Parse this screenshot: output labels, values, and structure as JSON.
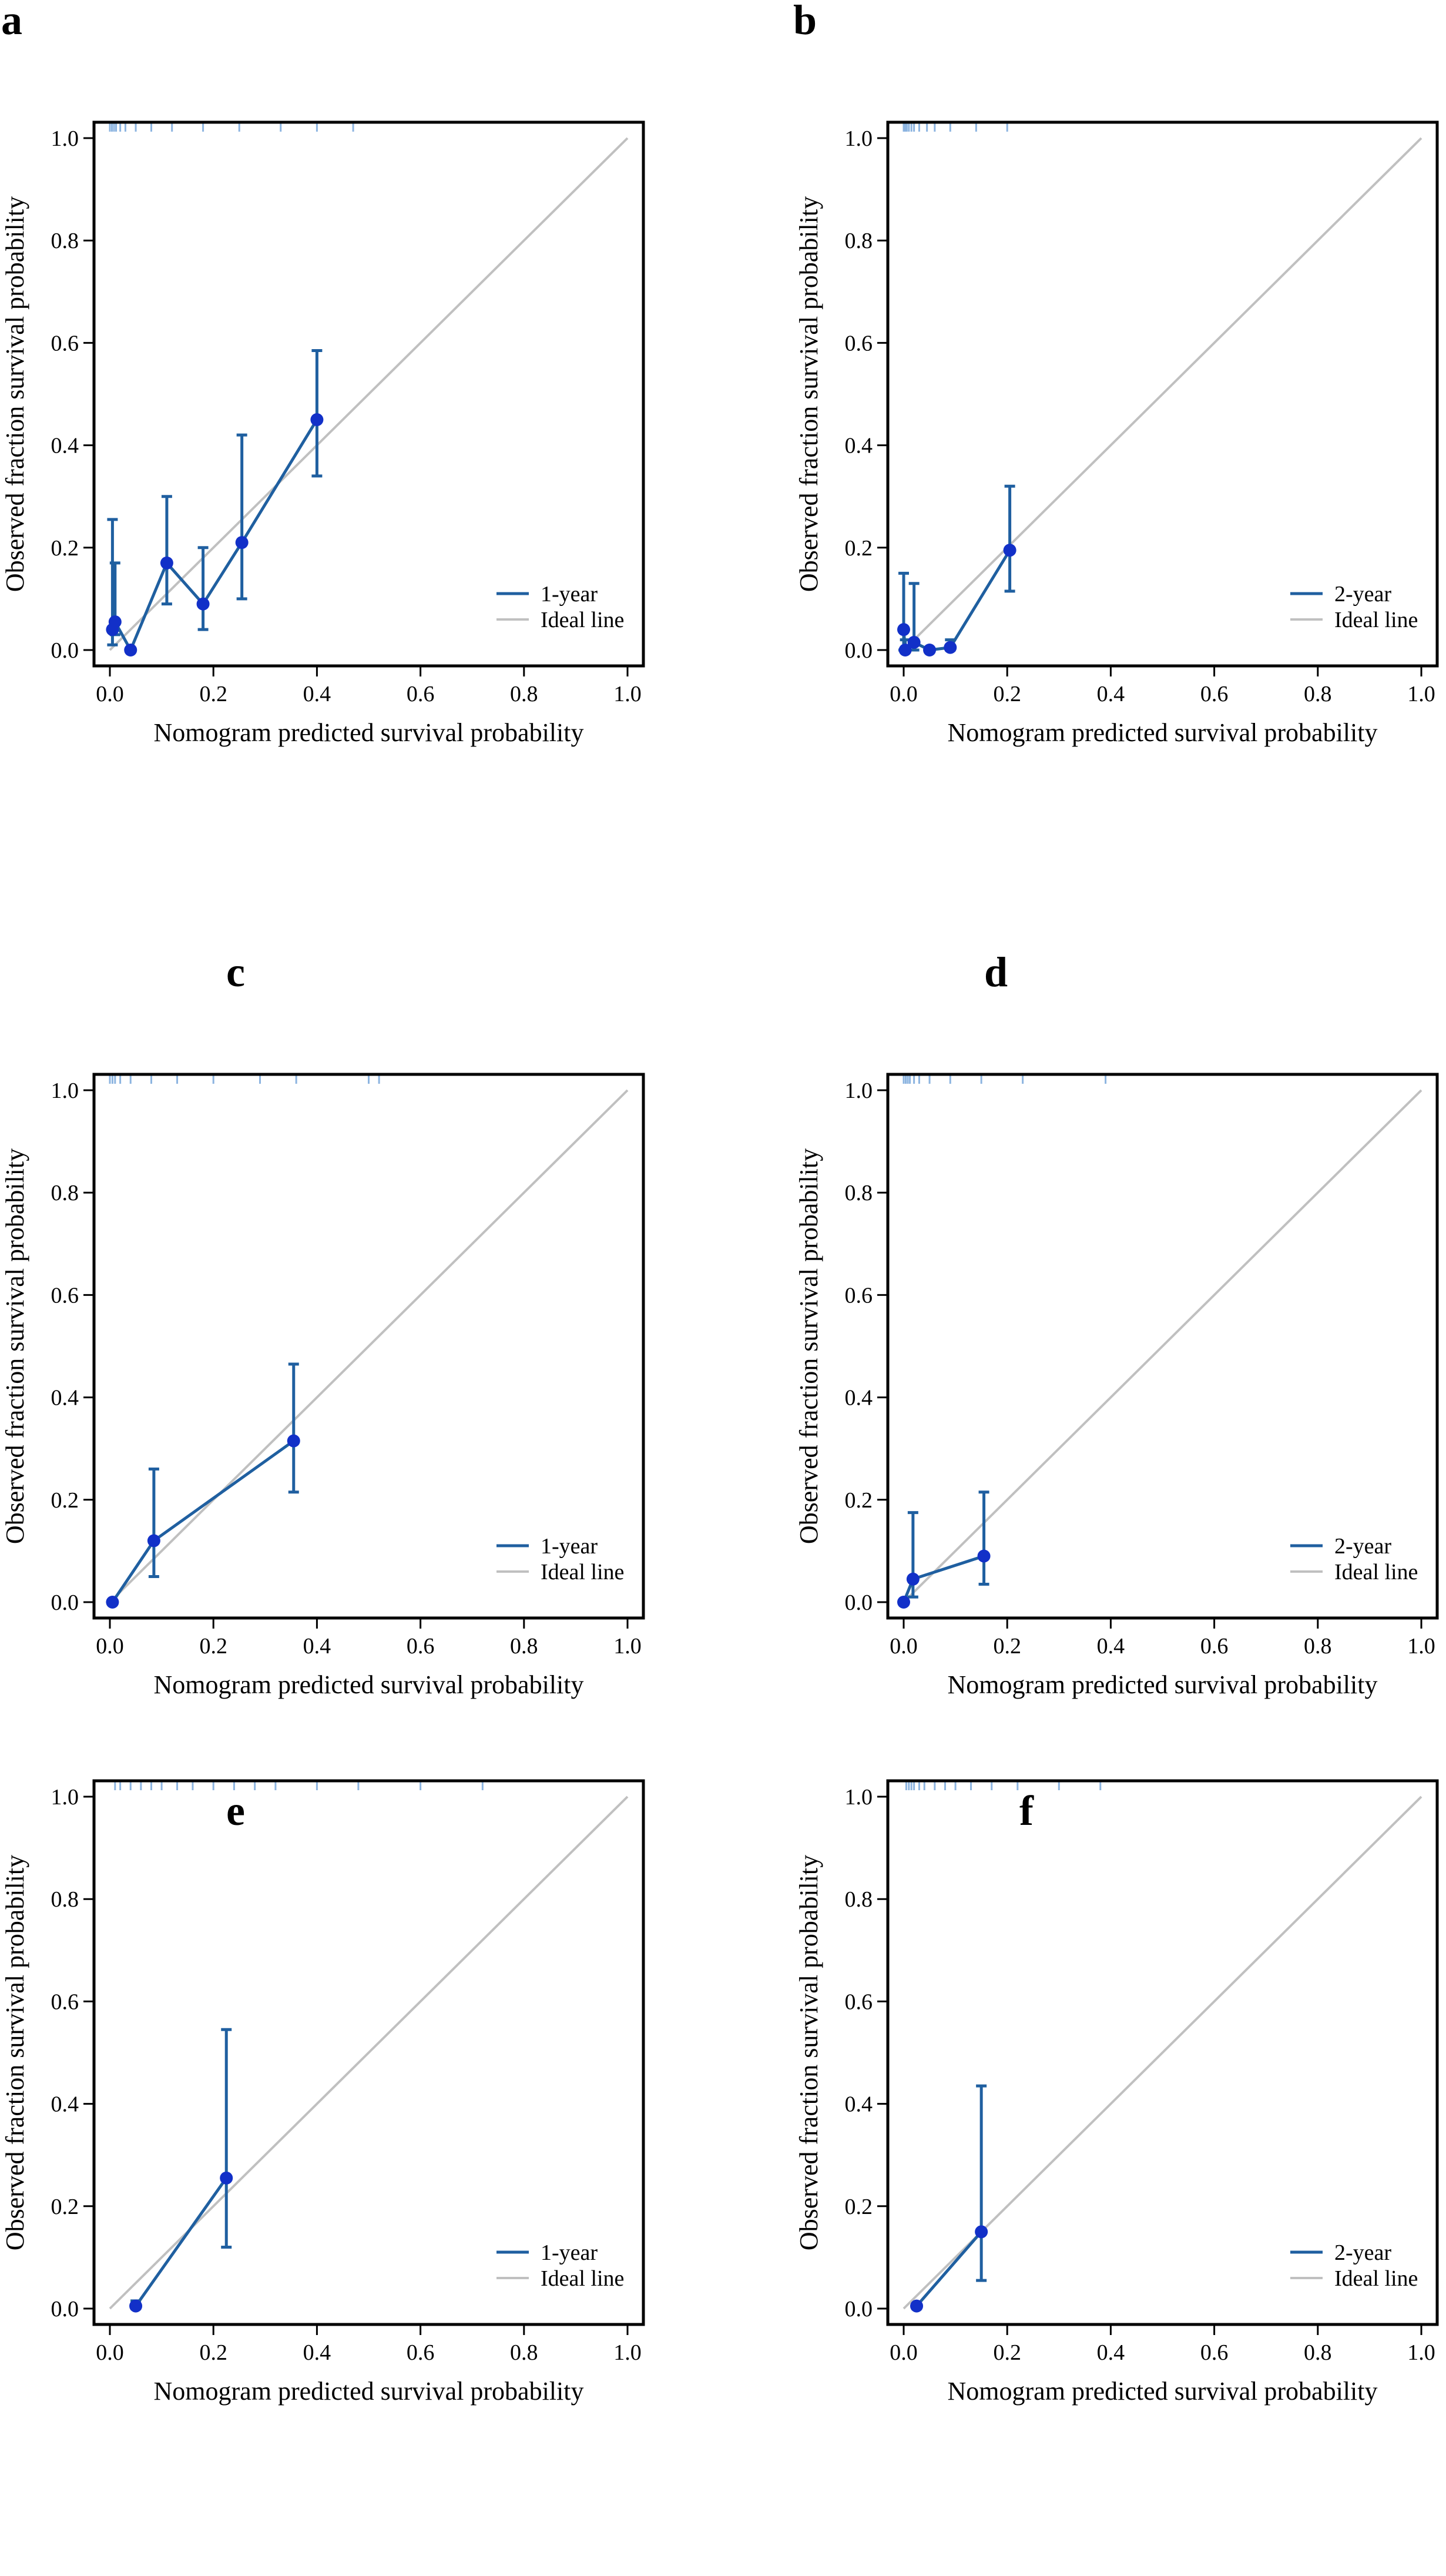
{
  "figure": {
    "panel_count": 6
  },
  "style": {
    "series_color": "#1f5fa0",
    "point_color": "#1230c8",
    "ideal_color": "#c0c0c0",
    "rug_color": "#8cb4e0",
    "frame_color": "#000000"
  },
  "chart_data": [
    {
      "panel": "a",
      "type": "line",
      "title": "",
      "xlabel": "Nomogram predicted survival probability",
      "ylabel": "Observed fraction survival probability",
      "xlim": [
        0,
        1
      ],
      "ylim": [
        0,
        1
      ],
      "xticks": [
        "0.0",
        "0.2",
        "0.4",
        "0.6",
        "0.8",
        "1.0"
      ],
      "yticks": [
        "0.0",
        "0.2",
        "0.4",
        "0.6",
        "0.8",
        "1.0"
      ],
      "legend": [
        "1-year",
        "Ideal line"
      ],
      "legend_position": "bottom-right",
      "series": [
        {
          "name": "1-year",
          "x": [
            0.005,
            0.01,
            0.04,
            0.11,
            0.18,
            0.255,
            0.4
          ],
          "y": [
            0.04,
            0.055,
            0.0,
            0.17,
            0.09,
            0.21,
            0.45
          ],
          "lower": [
            0.01,
            0.03,
            0.0,
            0.09,
            0.04,
            0.1,
            0.34
          ],
          "upper": [
            0.255,
            0.17,
            0.0,
            0.3,
            0.2,
            0.42,
            0.585
          ]
        }
      ],
      "rug": [
        0.0,
        0.004,
        0.008,
        0.012,
        0.02,
        0.03,
        0.05,
        0.08,
        0.12,
        0.18,
        0.25,
        0.33,
        0.4,
        0.47
      ]
    },
    {
      "panel": "b",
      "type": "line",
      "title": "",
      "xlabel": "Nomogram predicted survival probability",
      "ylabel": "Observed fraction survival probability",
      "xlim": [
        0,
        1
      ],
      "ylim": [
        0,
        1
      ],
      "xticks": [
        "0.0",
        "0.2",
        "0.4",
        "0.6",
        "0.8",
        "1.0"
      ],
      "yticks": [
        "0.0",
        "0.2",
        "0.4",
        "0.6",
        "0.8",
        "1.0"
      ],
      "legend": [
        "2-year",
        "Ideal line"
      ],
      "legend_position": "bottom-right",
      "series": [
        {
          "name": "2-year",
          "x": [
            0.0,
            0.003,
            0.02,
            0.05,
            0.09,
            0.205
          ],
          "y": [
            0.04,
            0.0,
            0.015,
            0.0,
            0.005,
            0.195
          ],
          "lower": [
            0.0,
            0.0,
            0.0,
            0.0,
            0.0,
            0.115
          ],
          "upper": [
            0.15,
            0.02,
            0.13,
            0.0,
            0.02,
            0.32
          ]
        }
      ],
      "rug": [
        0.0,
        0.003,
        0.006,
        0.01,
        0.015,
        0.02,
        0.03,
        0.045,
        0.06,
        0.09,
        0.14,
        0.2
      ]
    },
    {
      "panel": "c",
      "type": "line",
      "title": "",
      "xlabel": "Nomogram predicted survival probability",
      "ylabel": "Observed fraction survival probability",
      "xlim": [
        0,
        1
      ],
      "ylim": [
        0,
        1
      ],
      "xticks": [
        "0.0",
        "0.2",
        "0.4",
        "0.6",
        "0.8",
        "1.0"
      ],
      "yticks": [
        "0.0",
        "0.2",
        "0.4",
        "0.6",
        "0.8",
        "1.0"
      ],
      "legend": [
        "1-year",
        "Ideal line"
      ],
      "legend_position": "bottom-right",
      "series": [
        {
          "name": "1-year",
          "x": [
            0.005,
            0.085,
            0.355
          ],
          "y": [
            0.0,
            0.12,
            0.315
          ],
          "lower": [
            0.0,
            0.05,
            0.215
          ],
          "upper": [
            0.0,
            0.26,
            0.465
          ]
        }
      ],
      "rug": [
        0.0,
        0.005,
        0.01,
        0.02,
        0.04,
        0.08,
        0.13,
        0.2,
        0.29,
        0.36,
        0.5,
        0.52
      ]
    },
    {
      "panel": "d",
      "type": "line",
      "title": "",
      "xlabel": "Nomogram predicted survival probability",
      "ylabel": "Observed fraction survival probability",
      "xlim": [
        0,
        1
      ],
      "ylim": [
        0,
        1
      ],
      "xticks": [
        "0.0",
        "0.2",
        "0.4",
        "0.6",
        "0.8",
        "1.0"
      ],
      "yticks": [
        "0.0",
        "0.2",
        "0.4",
        "0.6",
        "0.8",
        "1.0"
      ],
      "legend": [
        "2-year",
        "Ideal line"
      ],
      "legend_position": "bottom-right",
      "series": [
        {
          "name": "2-year",
          "x": [
            0.0,
            0.018,
            0.155
          ],
          "y": [
            0.0,
            0.045,
            0.09
          ],
          "lower": [
            0.0,
            0.01,
            0.035
          ],
          "upper": [
            0.0,
            0.175,
            0.215
          ]
        }
      ],
      "rug": [
        0.0,
        0.004,
        0.008,
        0.012,
        0.02,
        0.03,
        0.05,
        0.09,
        0.15,
        0.23,
        0.39
      ]
    },
    {
      "panel": "e",
      "type": "line",
      "title": "",
      "xlabel": "Nomogram predicted survival probability",
      "ylabel": "Observed fraction survival probability",
      "xlim": [
        0,
        1
      ],
      "ylim": [
        0,
        1
      ],
      "xticks": [
        "0.0",
        "0.2",
        "0.4",
        "0.6",
        "0.8",
        "1.0"
      ],
      "yticks": [
        "0.0",
        "0.2",
        "0.4",
        "0.6",
        "0.8",
        "1.0"
      ],
      "legend": [
        "1-year",
        "Ideal line"
      ],
      "legend_position": "bottom-right",
      "series": [
        {
          "name": "1-year",
          "x": [
            0.05,
            0.225
          ],
          "y": [
            0.005,
            0.255
          ],
          "lower": [
            0.0,
            0.12
          ],
          "upper": [
            0.015,
            0.545
          ]
        }
      ],
      "rug": [
        0.01,
        0.02,
        0.04,
        0.06,
        0.08,
        0.1,
        0.13,
        0.16,
        0.2,
        0.24,
        0.28,
        0.32,
        0.4,
        0.48,
        0.6,
        0.72
      ]
    },
    {
      "panel": "f",
      "type": "line",
      "title": "",
      "xlabel": "Nomogram predicted survival probability",
      "ylabel": "Observed fraction survival probability",
      "xlim": [
        0,
        1
      ],
      "ylim": [
        0,
        1
      ],
      "xticks": [
        "0.0",
        "0.2",
        "0.4",
        "0.6",
        "0.8",
        "1.0"
      ],
      "yticks": [
        "0.0",
        "0.2",
        "0.4",
        "0.6",
        "0.8",
        "1.0"
      ],
      "legend": [
        "2-year",
        "Ideal line"
      ],
      "legend_position": "bottom-right",
      "series": [
        {
          "name": "2-year",
          "x": [
            0.025,
            0.15
          ],
          "y": [
            0.005,
            0.15
          ],
          "lower": [
            0.0,
            0.055
          ],
          "upper": [
            0.01,
            0.435
          ]
        }
      ],
      "rug": [
        0.005,
        0.01,
        0.015,
        0.02,
        0.03,
        0.04,
        0.06,
        0.08,
        0.1,
        0.13,
        0.17,
        0.22,
        0.3,
        0.38
      ]
    }
  ]
}
